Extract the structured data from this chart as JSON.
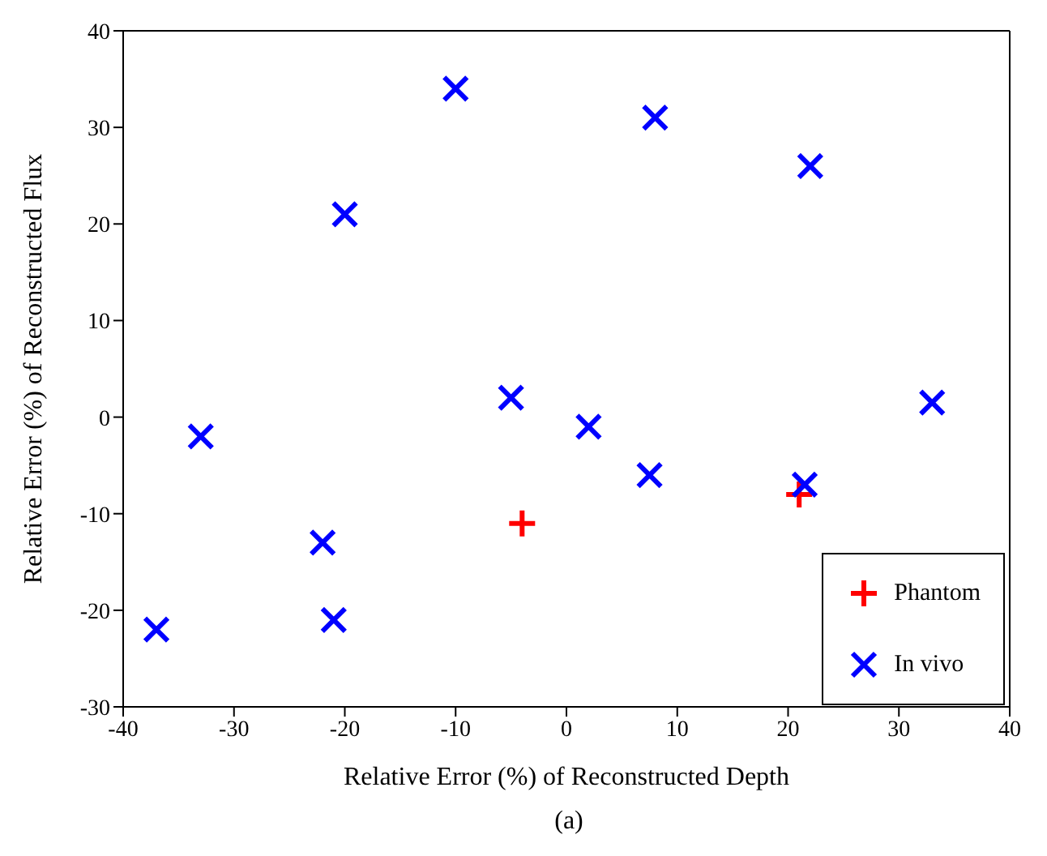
{
  "chart_data": {
    "type": "scatter",
    "xlabel": "Relative Error (%) of Reconstructed Depth",
    "ylabel": "Relative Error (%) of Reconstructed Flux",
    "annotations": [
      "(a)"
    ],
    "xlim": [
      -40,
      40
    ],
    "xticks": [
      -40,
      -30,
      -20,
      -10,
      0,
      10,
      20,
      30,
      40
    ],
    "ylim": [
      -30,
      40
    ],
    "yticks": [
      -30,
      -20,
      -10,
      0,
      10,
      20,
      30,
      40
    ],
    "grid": false,
    "legend": "bottom right",
    "series": [
      {
        "name": "Phantom",
        "color": "#ff0000",
        "marker": "plus",
        "x": [
          -4,
          21
        ],
        "values": [
          -11,
          -8
        ]
      },
      {
        "name": "In vivo",
        "color": "#0000ff",
        "marker": "cross",
        "x": [
          -37,
          -33,
          -22,
          -21,
          -20,
          -10,
          -5,
          2,
          7.5,
          8,
          22,
          21.5,
          33
        ],
        "values": [
          -22,
          -2,
          -13,
          -21,
          21,
          34,
          2,
          -1,
          -6,
          31,
          26,
          -7,
          1.5
        ]
      }
    ]
  }
}
